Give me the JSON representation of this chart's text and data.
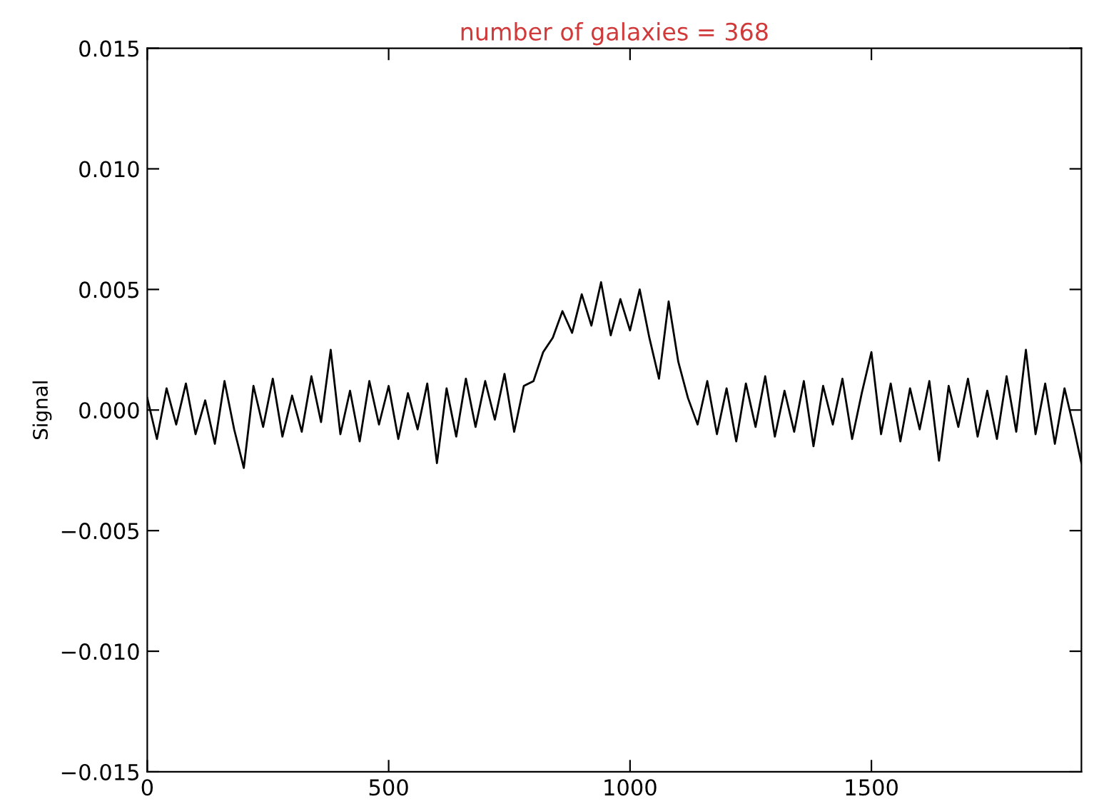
{
  "chart_data": {
    "type": "line",
    "title": "number of galaxies = 368",
    "ylabel": "Signal",
    "x": [
      0,
      20,
      40,
      60,
      80,
      100,
      120,
      140,
      160,
      180,
      200,
      220,
      240,
      260,
      280,
      300,
      320,
      340,
      360,
      380,
      400,
      420,
      440,
      460,
      480,
      500,
      520,
      540,
      560,
      580,
      600,
      620,
      640,
      660,
      680,
      700,
      720,
      740,
      760,
      780,
      800,
      820,
      840,
      860,
      880,
      900,
      920,
      940,
      960,
      980,
      1000,
      1020,
      1040,
      1060,
      1080,
      1100,
      1120,
      1140,
      1160,
      1180,
      1200,
      1220,
      1240,
      1260,
      1280,
      1300,
      1320,
      1340,
      1360,
      1380,
      1400,
      1420,
      1440,
      1460,
      1480,
      1500,
      1520,
      1540,
      1560,
      1580,
      1600,
      1620,
      1640,
      1660,
      1680,
      1700,
      1720,
      1740,
      1760,
      1780,
      1800,
      1820,
      1840,
      1860,
      1880,
      1900,
      1920,
      1935
    ],
    "series": [
      {
        "color": "#000000",
        "values": [
          0.0005,
          -0.0012,
          0.0009,
          -0.0006,
          0.0011,
          -0.001,
          0.0004,
          -0.0014,
          0.0012,
          -0.0008,
          -0.0024,
          0.001,
          -0.0007,
          0.0013,
          -0.0011,
          0.0006,
          -0.0009,
          0.0014,
          -0.0005,
          0.0025,
          -0.001,
          0.0008,
          -0.0013,
          0.0012,
          -0.0006,
          0.001,
          -0.0012,
          0.0007,
          -0.0008,
          0.0011,
          -0.0022,
          0.0009,
          -0.0011,
          0.0013,
          -0.0007,
          0.0012,
          -0.0004,
          0.0015,
          -0.0009,
          0.001,
          0.0012,
          0.0024,
          0.003,
          0.0041,
          0.0032,
          0.0048,
          0.0035,
          0.0053,
          0.0031,
          0.0046,
          0.0033,
          0.005,
          0.003,
          0.0013,
          0.0045,
          0.002,
          0.0005,
          -0.0006,
          0.0012,
          -0.001,
          0.0009,
          -0.0013,
          0.0011,
          -0.0007,
          0.0014,
          -0.0011,
          0.0008,
          -0.0009,
          0.0012,
          -0.0015,
          0.001,
          -0.0006,
          0.0013,
          -0.0012,
          0.0007,
          0.0024,
          -0.001,
          0.0011,
          -0.0013,
          0.0009,
          -0.0008,
          0.0012,
          -0.0021,
          0.001,
          -0.0007,
          0.0013,
          -0.0011,
          0.0008,
          -0.0012,
          0.0014,
          -0.0009,
          0.0025,
          -0.001,
          0.0011,
          -0.0014,
          0.0009,
          -0.0008,
          -0.0022
        ]
      }
    ],
    "xlim": [
      0,
      1935
    ],
    "xticks": [
      0,
      500,
      1000,
      1500
    ],
    "ylim": [
      -0.015,
      0.015
    ],
    "yticks": [
      {
        "value": -0.015,
        "label": "−0.015"
      },
      {
        "value": -0.01,
        "label": "−0.010"
      },
      {
        "value": -0.005,
        "label": "−0.005"
      },
      {
        "value": 0,
        "label": "0.000"
      },
      {
        "value": 0.005,
        "label": "0.005"
      },
      {
        "value": 0.01,
        "label": "0.010"
      },
      {
        "value": 0.015,
        "label": "0.015"
      }
    ]
  }
}
